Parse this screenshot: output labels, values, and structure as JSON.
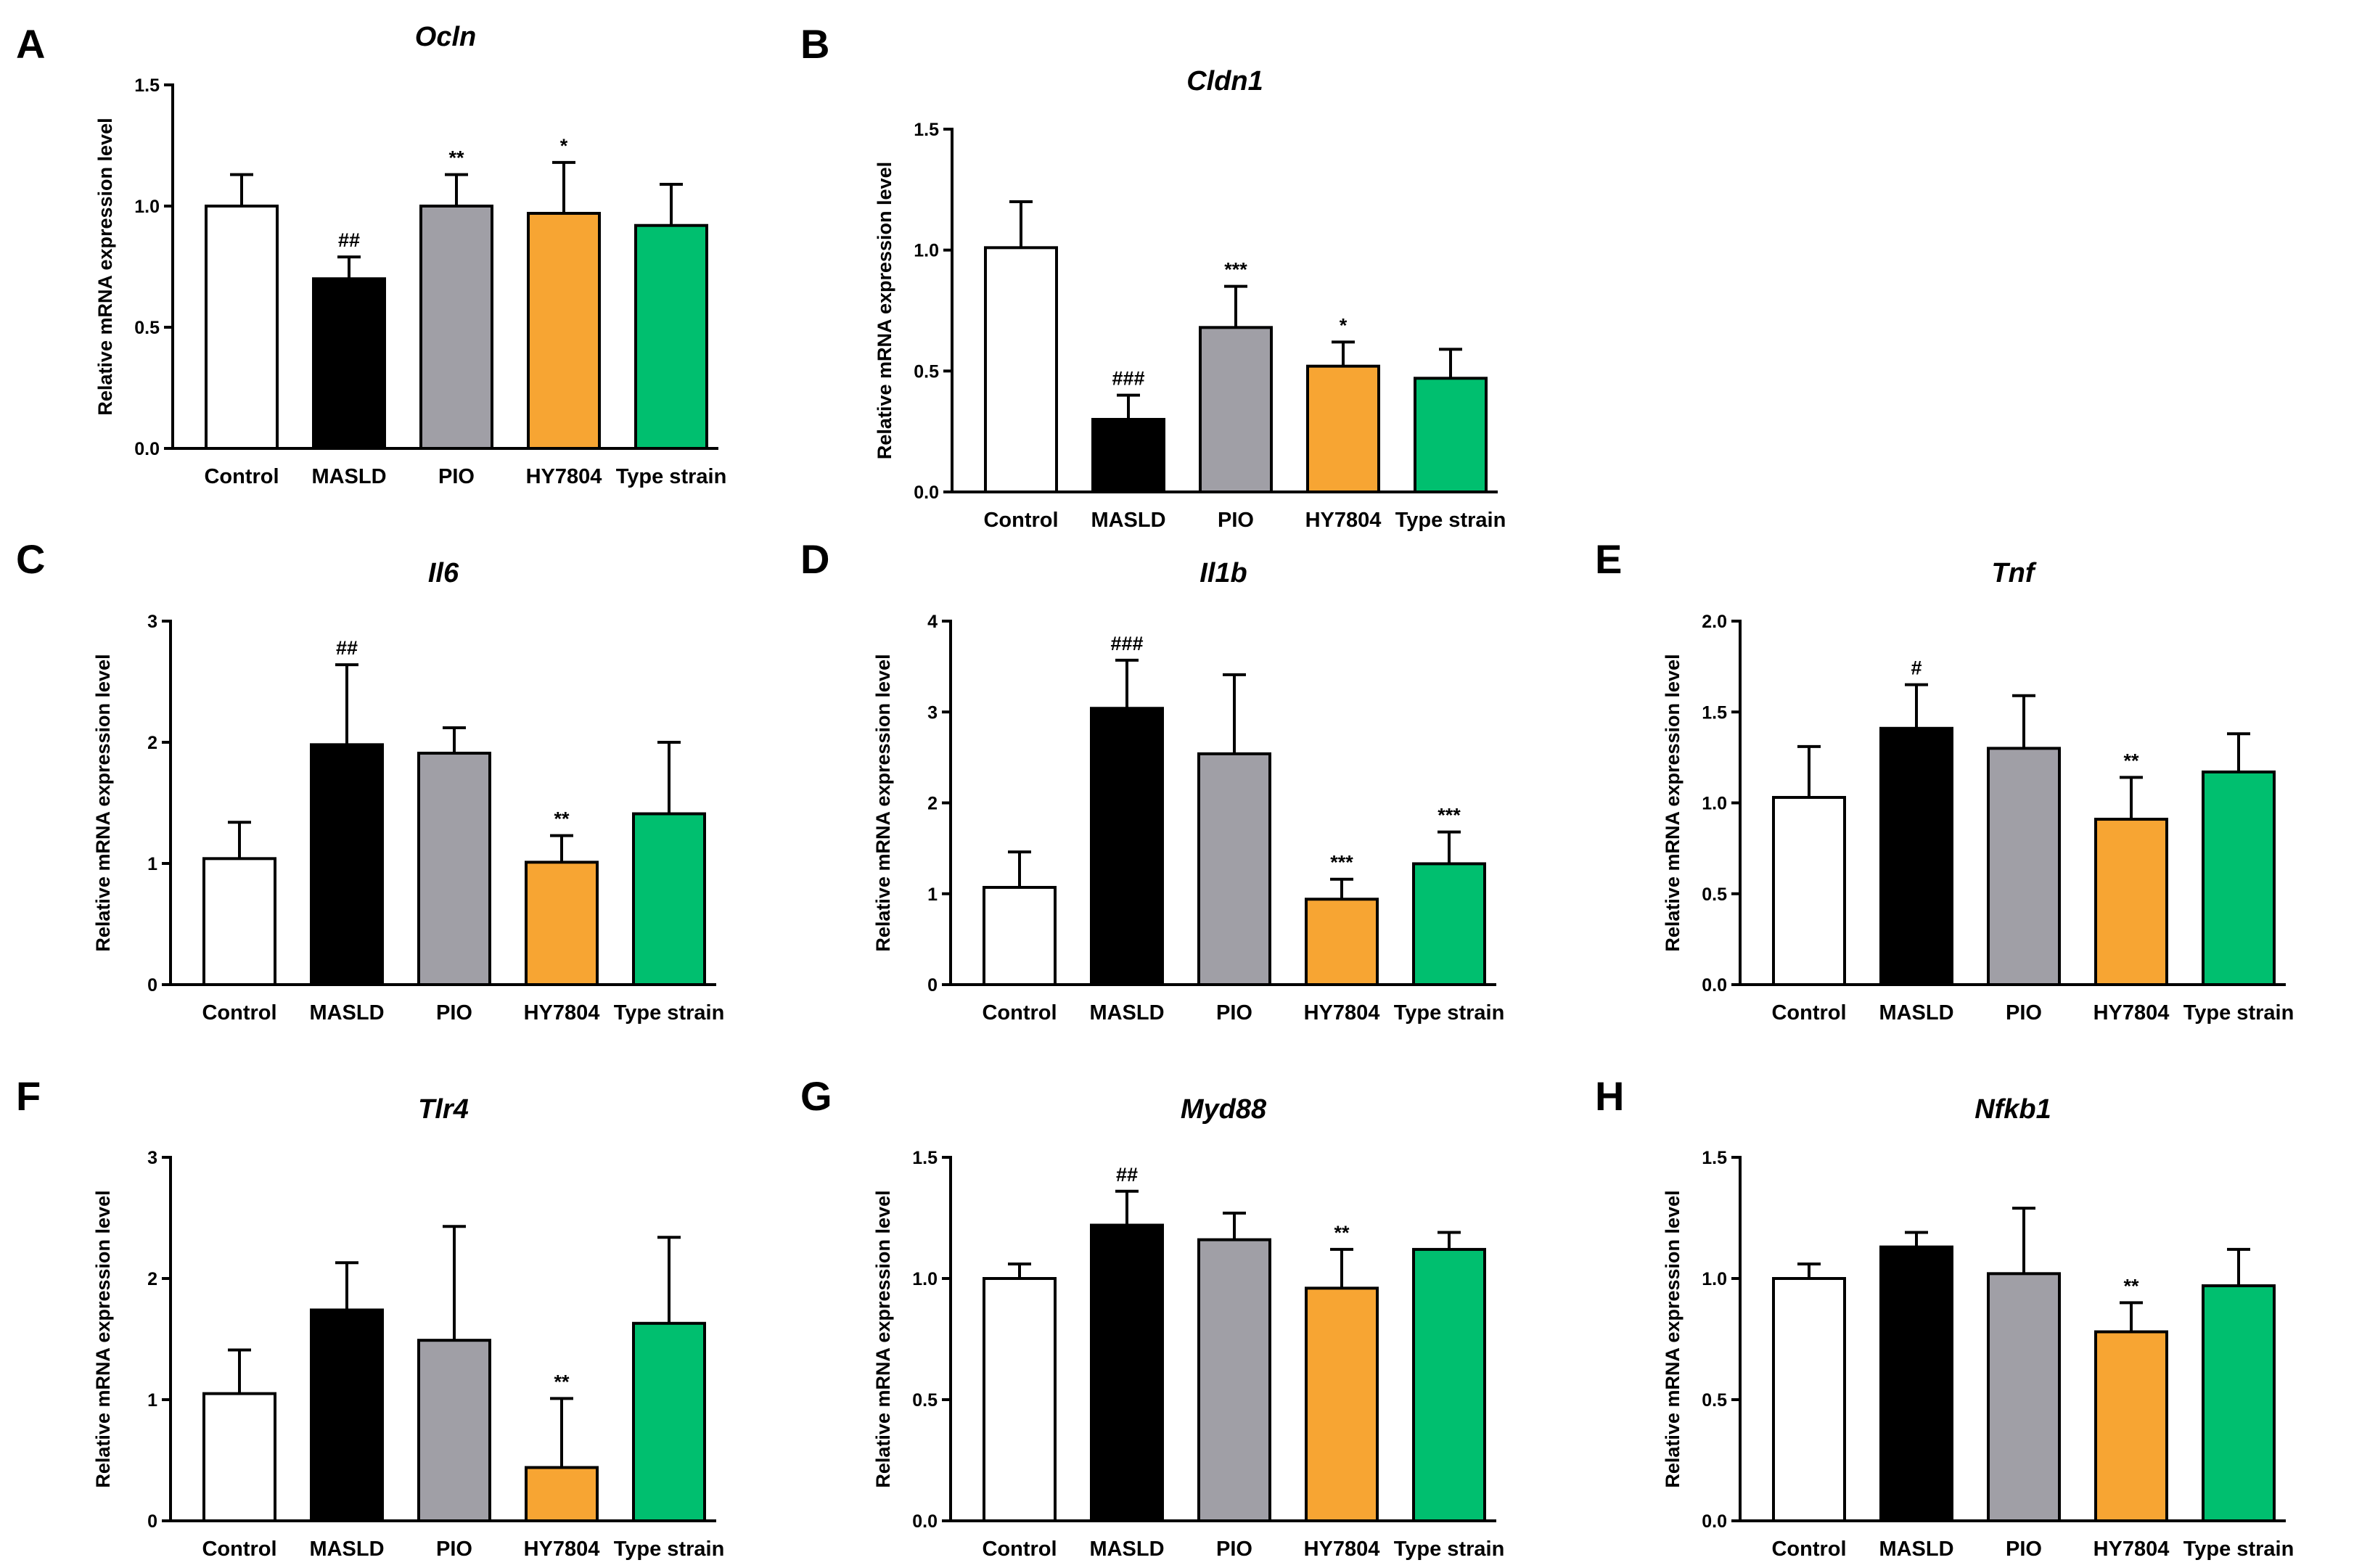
{
  "figure": {
    "categories": [
      "Control",
      "MASLD",
      "PIO",
      "HY7804",
      "Type strain"
    ],
    "colors": {
      "Control": "#ffffff",
      "MASLD": "#000000",
      "PIO": "#a09fa6",
      "HY7804": "#f7a533",
      "Type strain": "#00bf6f"
    },
    "ylabel": "Relative mRNA expression level"
  },
  "chart_data": [
    {
      "panel": "A",
      "title": "Ocln",
      "type": "bar",
      "categories": [
        "Control",
        "MASLD",
        "PIO",
        "HY7804",
        "Type strain"
      ],
      "values": [
        1.0,
        0.7,
        1.0,
        0.97,
        0.92
      ],
      "errors": [
        0.13,
        0.09,
        0.13,
        0.21,
        0.17
      ],
      "annotations": [
        "",
        "##",
        "**",
        "*",
        ""
      ],
      "ylim": [
        0,
        1.5
      ],
      "yticks": [
        "0.0",
        "0.5",
        "1.0",
        "1.5"
      ],
      "ylabel": "Relative mRNA expression level"
    },
    {
      "panel": "B",
      "title": "Cldn1",
      "type": "bar",
      "categories": [
        "Control",
        "MASLD",
        "PIO",
        "HY7804",
        "Type strain"
      ],
      "values": [
        1.01,
        0.3,
        0.68,
        0.52,
        0.47
      ],
      "errors": [
        0.19,
        0.1,
        0.17,
        0.1,
        0.12
      ],
      "annotations": [
        "",
        "###",
        "***",
        "*",
        ""
      ],
      "ylim": [
        0,
        1.5
      ],
      "yticks": [
        "0.0",
        "0.5",
        "1.0",
        "1.5"
      ],
      "ylabel": "Relative mRNA expression level"
    },
    {
      "panel": "C",
      "title": "Il6",
      "type": "bar",
      "categories": [
        "Control",
        "MASLD",
        "PIO",
        "HY7804",
        "Type strain"
      ],
      "values": [
        1.04,
        1.98,
        1.91,
        1.01,
        1.41
      ],
      "errors": [
        0.3,
        0.66,
        0.21,
        0.22,
        0.59
      ],
      "annotations": [
        "",
        "##",
        "",
        "**",
        ""
      ],
      "ylim": [
        0,
        3
      ],
      "yticks": [
        "0",
        "1",
        "2",
        "3"
      ],
      "ylabel": "Relative mRNA expression level"
    },
    {
      "panel": "D",
      "title": "Il1b",
      "type": "bar",
      "categories": [
        "Control",
        "MASLD",
        "PIO",
        "HY7804",
        "Type strain"
      ],
      "values": [
        1.07,
        3.04,
        2.54,
        0.94,
        1.33
      ],
      "errors": [
        0.39,
        0.53,
        0.87,
        0.22,
        0.35
      ],
      "annotations": [
        "",
        "###",
        "",
        "***",
        "***"
      ],
      "ylim": [
        0,
        4
      ],
      "yticks": [
        "0",
        "1",
        "2",
        "3",
        "4"
      ],
      "ylabel": "Relative mRNA expression level"
    },
    {
      "panel": "E",
      "title": "Tnf",
      "type": "bar",
      "categories": [
        "Control",
        "MASLD",
        "PIO",
        "HY7804",
        "Type strain"
      ],
      "values": [
        1.03,
        1.41,
        1.3,
        0.91,
        1.17
      ],
      "errors": [
        0.28,
        0.24,
        0.29,
        0.23,
        0.21
      ],
      "annotations": [
        "",
        "#",
        "",
        "**",
        ""
      ],
      "ylim": [
        0,
        2.0
      ],
      "yticks": [
        "0.0",
        "0.5",
        "1.0",
        "1.5",
        "2.0"
      ],
      "ylabel": "Relative mRNA expression level"
    },
    {
      "panel": "F",
      "title": "Tlr4",
      "type": "bar",
      "categories": [
        "Control",
        "MASLD",
        "PIO",
        "HY7804",
        "Type strain"
      ],
      "values": [
        1.05,
        1.74,
        1.49,
        0.44,
        1.63
      ],
      "errors": [
        0.36,
        0.39,
        0.94,
        0.57,
        0.71
      ],
      "annotations": [
        "",
        "",
        "",
        "**",
        ""
      ],
      "ylim": [
        0,
        3
      ],
      "yticks": [
        "0",
        "1",
        "2",
        "3"
      ],
      "ylabel": "Relative mRNA expression level"
    },
    {
      "panel": "G",
      "title": "Myd88",
      "type": "bar",
      "categories": [
        "Control",
        "MASLD",
        "PIO",
        "HY7804",
        "Type strain"
      ],
      "values": [
        1.0,
        1.22,
        1.16,
        0.96,
        1.12
      ],
      "errors": [
        0.06,
        0.14,
        0.11,
        0.16,
        0.07
      ],
      "annotations": [
        "",
        "##",
        "",
        "**",
        ""
      ],
      "ylim": [
        0,
        1.5
      ],
      "yticks": [
        "0.0",
        "0.5",
        "1.0",
        "1.5"
      ],
      "ylabel": "Relative mRNA expression level"
    },
    {
      "panel": "H",
      "title": "Nfkb1",
      "type": "bar",
      "categories": [
        "Control",
        "MASLD",
        "PIO",
        "HY7804",
        "Type strain"
      ],
      "values": [
        1.0,
        1.13,
        1.02,
        0.78,
        0.97
      ],
      "errors": [
        0.06,
        0.06,
        0.27,
        0.12,
        0.15
      ],
      "annotations": [
        "",
        "",
        "",
        "**",
        ""
      ],
      "ylim": [
        0,
        1.5
      ],
      "yticks": [
        "0.0",
        "0.5",
        "1.0",
        "1.5"
      ],
      "ylabel": "Relative mRNA expression level"
    }
  ]
}
